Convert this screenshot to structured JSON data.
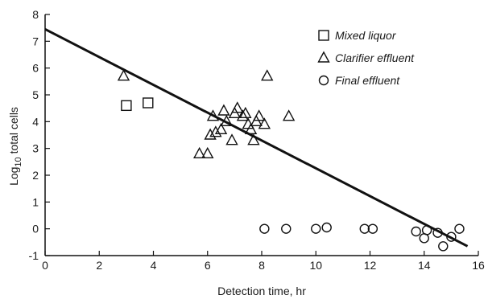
{
  "chart_data": {
    "type": "scatter",
    "xlabel": "Detection time, hr",
    "ylabel_parts": [
      "Log",
      "10",
      " total cells"
    ],
    "xlim": [
      0,
      16
    ],
    "ylim": [
      -1,
      8
    ],
    "x_ticks": [
      0,
      2,
      4,
      6,
      8,
      10,
      12,
      14,
      16
    ],
    "y_ticks": [
      -1,
      0,
      1,
      2,
      3,
      4,
      5,
      6,
      7,
      8
    ],
    "grid": false,
    "legend_position": "top-right",
    "series": [
      {
        "name": "Mixed liquor",
        "marker": "square",
        "points": [
          [
            3.0,
            4.6
          ],
          [
            3.8,
            4.7
          ]
        ]
      },
      {
        "name": "Clarifier effluent",
        "marker": "triangle",
        "points": [
          [
            2.9,
            5.7
          ],
          [
            5.7,
            2.8
          ],
          [
            6.0,
            2.8
          ],
          [
            6.1,
            3.5
          ],
          [
            6.2,
            4.2
          ],
          [
            6.3,
            3.6
          ],
          [
            6.5,
            3.7
          ],
          [
            6.6,
            4.4
          ],
          [
            6.7,
            4.0
          ],
          [
            6.9,
            3.3
          ],
          [
            7.0,
            4.3
          ],
          [
            7.1,
            4.5
          ],
          [
            7.3,
            4.2
          ],
          [
            7.4,
            4.3
          ],
          [
            7.5,
            3.9
          ],
          [
            7.6,
            3.7
          ],
          [
            7.7,
            3.3
          ],
          [
            7.8,
            4.0
          ],
          [
            7.9,
            4.2
          ],
          [
            8.1,
            3.9
          ],
          [
            8.2,
            5.7
          ],
          [
            9.0,
            4.2
          ]
        ]
      },
      {
        "name": "Final effluent",
        "marker": "circle",
        "points": [
          [
            8.1,
            0.0
          ],
          [
            8.9,
            0.0
          ],
          [
            10.0,
            0.0
          ],
          [
            10.4,
            0.05
          ],
          [
            11.8,
            0.0
          ],
          [
            12.1,
            0.0
          ],
          [
            13.7,
            -0.1
          ],
          [
            14.0,
            -0.35
          ],
          [
            14.1,
            -0.05
          ],
          [
            14.5,
            -0.15
          ],
          [
            14.7,
            -0.65
          ],
          [
            15.0,
            -0.3
          ],
          [
            15.3,
            0.0
          ]
        ]
      }
    ],
    "fit_line": [
      [
        0,
        7.45
      ],
      [
        15.6,
        -0.65
      ]
    ]
  }
}
